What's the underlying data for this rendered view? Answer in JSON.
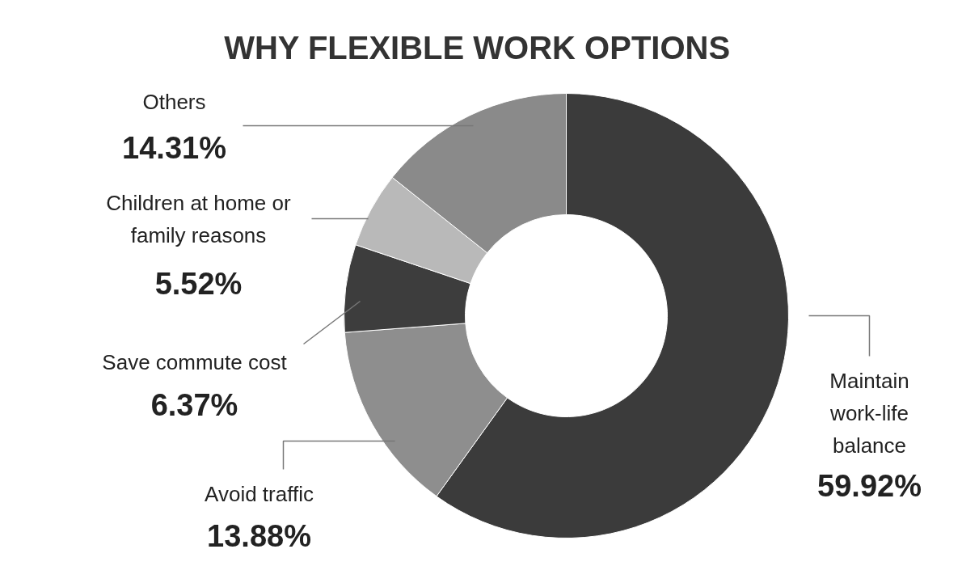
{
  "chart_data": {
    "type": "donut",
    "title": "WHY FLEXIBLE WORK OPTIONS",
    "categories": [
      "Maintain work-life balance",
      "Avoid traffic",
      "Save commute cost",
      "Children at home or family reasons",
      "Others"
    ],
    "values": [
      59.92,
      13.88,
      6.37,
      5.52,
      14.31
    ],
    "colors": [
      "#3b3b3b",
      "#8e8e8e",
      "#3d3d3d",
      "#b9b9b9",
      "#8a8a8a"
    ],
    "value_labels": [
      "59.92%",
      "13.88%",
      "6.37%",
      "5.52%",
      "14.31%"
    ]
  }
}
